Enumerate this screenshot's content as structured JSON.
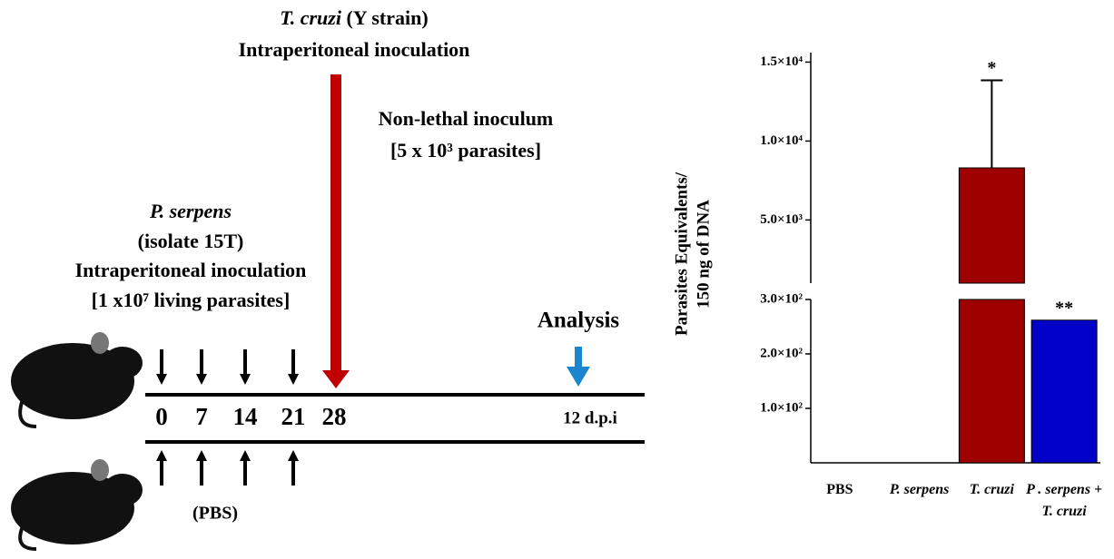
{
  "diagram": {
    "tcruzi_name": "T. cruzi",
    "tcruzi_strain": "(Y strain)",
    "tcruzi_route": "Intraperitoneal inoculation",
    "inoculum_title": "Non-lethal inoculum",
    "inoculum_dose": "[5 x 10³  parasites]",
    "pserpens_name": "P. serpens",
    "pserpens_isolate": "(isolate 15T)",
    "pserpens_route": "Intraperitoneal inoculation",
    "pserpens_dose": "[1 x10⁷ living parasites]",
    "analysis": "Analysis",
    "days": [
      "0",
      "7",
      "14",
      "21",
      "28"
    ],
    "analysis_day": "12 d.p.i",
    "control_label": "(PBS)"
  },
  "chart_data": {
    "type": "bar",
    "ylabel": [
      "Parasites Equivalents/",
      "150 ng of DNA"
    ],
    "categories": [
      "PBS",
      "P. serpens",
      "T. cruzi",
      "P . serpens + T. cruzi"
    ],
    "values": [
      0,
      0,
      8300,
      262
    ],
    "errors": [
      null,
      null,
      5550,
      null
    ],
    "markers": [
      null,
      null,
      "*",
      "**"
    ],
    "colors": [
      "#8b0000",
      "#8b0000",
      "#9e0000",
      "#0000c8"
    ],
    "segments": [
      {
        "ylim": [
          0,
          300
        ],
        "yticks": [
          {
            "value": 100,
            "label": "1.0×10²"
          },
          {
            "value": 200,
            "label": "2.0×10²"
          },
          {
            "value": 300,
            "label": "3.0×10²"
          }
        ]
      },
      {
        "ylim": [
          1000,
          15600
        ],
        "yticks": [
          {
            "value": 5000,
            "label": "5.0×10³"
          },
          {
            "value": 10000,
            "label": "1.0×10⁴"
          },
          {
            "value": 15000,
            "label": "1.5×10⁴"
          }
        ]
      }
    ]
  }
}
